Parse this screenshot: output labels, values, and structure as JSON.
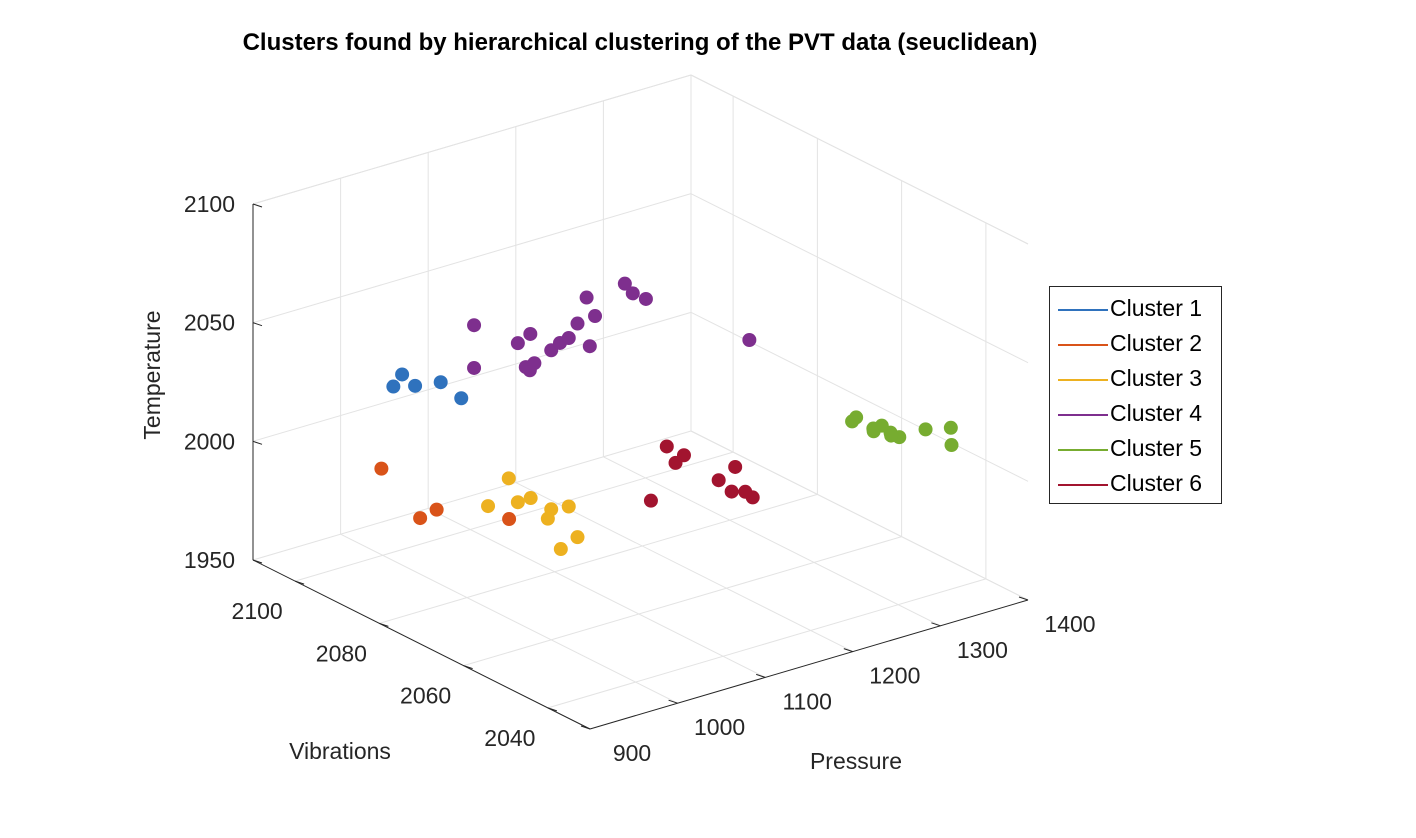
{
  "chart_data": {
    "type": "scatter3d",
    "title": "Clusters found by hierarchical clustering of the PVT data (seuclidean)",
    "xlabel": "Pressure",
    "ylabel": "Vibrations",
    "zlabel": "Temperature",
    "xlim": [
      900,
      1400
    ],
    "ylim": [
      2030,
      2110
    ],
    "zlim": [
      1950,
      2100
    ],
    "xticks": [
      "900",
      "1000",
      "1100",
      "1200",
      "1300",
      "1400"
    ],
    "yticks": [
      "2040",
      "2060",
      "2080",
      "2100"
    ],
    "zticks": [
      "1950",
      "2000",
      "2050",
      "2100"
    ],
    "grid": true,
    "legend_position": "right",
    "series": [
      {
        "name": "Cluster 1",
        "color": "#2f72bd",
        "points": [
          [
            950,
            2085,
            2045
          ],
          [
            960,
            2084,
            2040
          ],
          [
            940,
            2085,
            2041
          ],
          [
            955,
            2072,
            2046
          ],
          [
            970,
            2080,
            2044
          ]
        ]
      },
      {
        "name": "Cluster 2",
        "color": "#d95319",
        "points": [
          [
            960,
            2092,
            1998
          ],
          [
            975,
            2082,
            1988
          ],
          [
            985,
            2088,
            1978
          ],
          [
            1000,
            2070,
            1992
          ]
        ]
      },
      {
        "name": "Cluster 3",
        "color": "#edb120",
        "points": [
          [
            990,
            2068,
            2012
          ],
          [
            1000,
            2060,
            2005
          ],
          [
            1010,
            2070,
            1998
          ],
          [
            1020,
            2060,
            2004
          ],
          [
            1015,
            2068,
            2001
          ],
          [
            1025,
            2066,
            1993
          ],
          [
            1000,
            2075,
            1993
          ],
          [
            1030,
            2060,
            1990
          ],
          [
            1035,
            2065,
            1980
          ]
        ]
      },
      {
        "name": "Cluster 4",
        "color": "#7e2f8e",
        "points": [
          [
            960,
            2070,
            2078
          ],
          [
            960,
            2070,
            2060
          ],
          [
            990,
            2063,
            2062
          ],
          [
            995,
            2065,
            2061
          ],
          [
            1000,
            2064,
            2063
          ],
          [
            1010,
            2070,
            2065
          ],
          [
            1000,
            2060,
            2072
          ],
          [
            1005,
            2066,
            2073
          ],
          [
            1010,
            2060,
            2074
          ],
          [
            1020,
            2060,
            2075
          ],
          [
            1020,
            2055,
            2076
          ],
          [
            1030,
            2060,
            2080
          ],
          [
            1050,
            2062,
            2087
          ],
          [
            1045,
            2050,
            2100
          ],
          [
            1060,
            2055,
            2098
          ],
          [
            1060,
            2050,
            2096
          ],
          [
            1050,
            2060,
            2081
          ],
          [
            1130,
            2040,
            2080
          ]
        ]
      },
      {
        "name": "Cluster 5",
        "color": "#77ac30",
        "points": [
          [
            1300,
            2050,
            2020
          ],
          [
            1310,
            2046,
            2019
          ],
          [
            1310,
            2048,
            2016
          ],
          [
            1305,
            2052,
            2016
          ],
          [
            1320,
            2046,
            2015
          ],
          [
            1320,
            2050,
            2012
          ],
          [
            1330,
            2046,
            2012
          ],
          [
            1340,
            2050,
            2008
          ],
          [
            1360,
            2040,
            2018
          ],
          [
            1360,
            2046,
            2012
          ],
          [
            1380,
            2044,
            2005
          ]
        ]
      },
      {
        "name": "Cluster 6",
        "color": "#a2142f",
        "points": [
          [
            1180,
            2070,
            2003
          ],
          [
            1190,
            2068,
            2000
          ],
          [
            1190,
            2070,
            1995
          ],
          [
            1210,
            2060,
            2000
          ],
          [
            1220,
            2066,
            1988
          ],
          [
            1230,
            2060,
            1985
          ],
          [
            1230,
            2065,
            1983
          ],
          [
            1260,
            2068,
            1977
          ],
          [
            1210,
            2080,
            1968
          ]
        ]
      }
    ]
  }
}
